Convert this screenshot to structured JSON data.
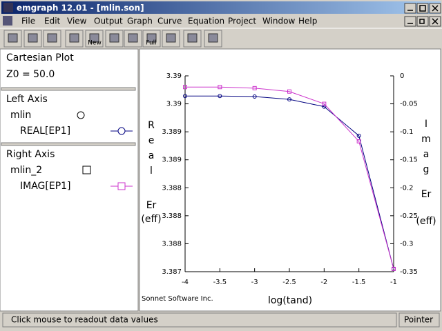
{
  "title_bar": {
    "title": "emgraph 12.01 - [mlin.son]"
  },
  "menu": [
    "File",
    "Edit",
    "View",
    "Output",
    "Graph",
    "Curve",
    "Equation",
    "Project",
    "Window",
    "Help"
  ],
  "toolbar": [
    "New",
    "Full"
  ],
  "left_panel": {
    "plot_type": "Cartesian Plot",
    "z0": "Z0 = 50.0",
    "left_axis": {
      "heading": "Left Axis",
      "group": "mlin"
    },
    "right_axis": {
      "heading": "Right Axis",
      "group": "mlin_2"
    }
  },
  "chart_data": {
    "type": "line",
    "x": [
      -4,
      -3.5,
      -3,
      -2.5,
      -2,
      -1.5,
      -1
    ],
    "xlim": [
      -4,
      -1
    ],
    "xticks": [
      -4,
      -3.5,
      -3,
      -2.5,
      -2,
      -1.5,
      -1
    ],
    "ylim": [
      3.387,
      3.3905
    ],
    "yticks": [
      {
        "value": 3.387,
        "label": "3.387"
      },
      {
        "value": 3.3875,
        "label": "3.388"
      },
      {
        "value": 3.388,
        "label": "3.388"
      },
      {
        "value": 3.3885,
        "label": "3.388"
      },
      {
        "value": 3.389,
        "label": "3.389"
      },
      {
        "value": 3.3895,
        "label": "3.389"
      },
      {
        "value": 3.39,
        "label": "3.39"
      },
      {
        "value": 3.3905,
        "label": "3.39"
      }
    ],
    "y2lim": [
      -0.35,
      0
    ],
    "y2ticks": [
      -0.35,
      -0.3,
      -0.25,
      -0.2,
      -0.15,
      -0.1,
      -0.05,
      0
    ],
    "x_label": "log(tand)",
    "y_label": [
      "Real",
      "Er",
      "(eff)"
    ],
    "y2_label": [
      "Imag",
      "Er",
      "(eff)"
    ],
    "credit": "Sonnet Software Inc.",
    "series": [
      {
        "name": "REAL[EP1]",
        "color": "#000080",
        "marker": "circle",
        "values": [
          3.39014,
          3.39014,
          3.39013,
          3.39008,
          3.38995,
          3.38943,
          3.38705
        ]
      },
      {
        "name": "IMAG[EP1]",
        "color": "#cc33cc",
        "marker": "square",
        "axis": "y2",
        "values": [
          -0.02,
          -0.02,
          -0.022,
          -0.028,
          -0.05,
          -0.117,
          -0.345
        ]
      }
    ]
  },
  "status": {
    "message": "Click mouse to readout data values",
    "mode": "Pointer"
  }
}
